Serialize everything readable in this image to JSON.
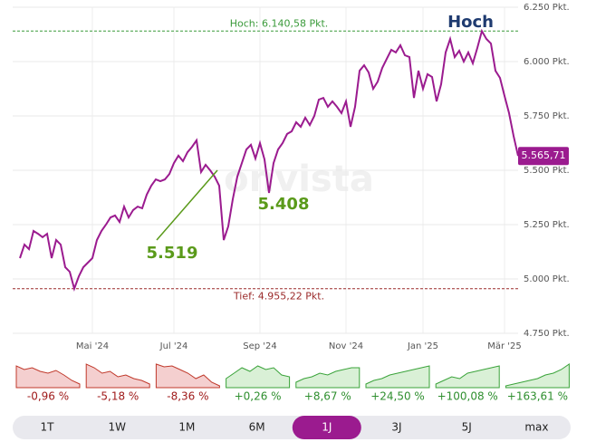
{
  "chart_data": {
    "type": "line",
    "color": "#9b1b8f",
    "categories": [
      null,
      null,
      null,
      null,
      null,
      null,
      null,
      null,
      null,
      null,
      null,
      null,
      null,
      null,
      null,
      null,
      "Mai '24",
      null,
      null,
      null,
      null,
      null,
      null,
      null,
      null,
      null,
      null,
      null,
      null,
      null,
      null,
      null,
      null,
      null,
      "Jul '24",
      null,
      null,
      null,
      null,
      null,
      null,
      null,
      null,
      null,
      null,
      null,
      null,
      null,
      null,
      null,
      null,
      null,
      null,
      "Sep '24",
      null,
      null,
      null,
      null,
      null,
      null,
      null,
      null,
      null,
      null,
      null,
      null,
      null,
      null,
      null,
      null,
      null,
      null,
      "Nov '24",
      null,
      null,
      null,
      null,
      null,
      null,
      null,
      null,
      null,
      null,
      null,
      null,
      null,
      null,
      null,
      null,
      "Jan '25",
      null,
      null,
      null,
      null,
      null,
      null,
      null,
      null,
      null,
      null,
      null,
      null,
      null,
      null,
      null,
      null,
      null,
      "Mär '25",
      null,
      null,
      null
    ],
    "values": [
      5096,
      5158,
      5137,
      5221,
      5208,
      5192,
      5208,
      5096,
      5179,
      5158,
      5054,
      5033,
      4955.22,
      5012,
      5054,
      5075,
      5096,
      5179,
      5221,
      5250,
      5283,
      5292,
      5262,
      5333,
      5283,
      5317,
      5333,
      5325,
      5388,
      5429,
      5458,
      5450,
      5458,
      5483,
      5533,
      5567,
      5542,
      5583,
      5608,
      5638,
      5492,
      5525,
      5500,
      5471,
      5429,
      5179,
      5242,
      5367,
      5471,
      5533,
      5596,
      5617,
      5554,
      5625,
      5550,
      5396,
      5533,
      5596,
      5625,
      5667,
      5679,
      5721,
      5700,
      5742,
      5708,
      5750,
      5825,
      5833,
      5792,
      5817,
      5792,
      5763,
      5817,
      5700,
      5792,
      5958,
      5983,
      5950,
      5875,
      5908,
      5971,
      6013,
      6054,
      6042,
      6075,
      6029,
      6021,
      5833,
      5958,
      5875,
      5942,
      5929,
      5817,
      5896,
      6042,
      6104,
      6021,
      6050,
      6000,
      6042,
      5992,
      6063,
      6140.58,
      6104,
      6083,
      5958,
      5925,
      5842,
      5763,
      5658,
      5565.71
    ],
    "last_value_label": "5.565,71",
    "ylim": [
      4750,
      6250
    ],
    "yticks": [
      {
        "value": 4750,
        "label": "4.750 Pkt."
      },
      {
        "value": 5000,
        "label": "5.000 Pkt."
      },
      {
        "value": 5250,
        "label": "5.250 Pkt."
      },
      {
        "value": 5500,
        "label": "5.500 Pkt."
      },
      {
        "value": 5750,
        "label": "5.750 Pkt."
      },
      {
        "value": 6000,
        "label": "6.000 Pkt."
      },
      {
        "value": 6250,
        "label": "6.250 Pkt."
      }
    ],
    "grid": true,
    "high": {
      "value": 6140.58,
      "label": "Hoch: 6.140,58 Pkt."
    },
    "low": {
      "value": 4955.22,
      "label": "Tief: 4.955,22 Pkt."
    },
    "annotations": [
      "Hoch",
      "5.519",
      "5.408"
    ],
    "watermark": "onvista"
  },
  "performance": [
    {
      "value": -0.96,
      "label": "-0,96 %"
    },
    {
      "value": -5.18,
      "label": "-5,18 %"
    },
    {
      "value": -8.36,
      "label": "-8,36 %"
    },
    {
      "value": 0.26,
      "label": "+0,26 %"
    },
    {
      "value": 8.67,
      "label": "+8,67 %"
    },
    {
      "value": 24.5,
      "label": "+24,50 %"
    },
    {
      "value": 100.08,
      "label": "+100,08 %"
    },
    {
      "value": 163.61,
      "label": "+163,61 %"
    }
  ],
  "ranges": [
    "1T",
    "1W",
    "1M",
    "6M",
    "1J",
    "3J",
    "5J",
    "max"
  ],
  "active_range": "1J"
}
